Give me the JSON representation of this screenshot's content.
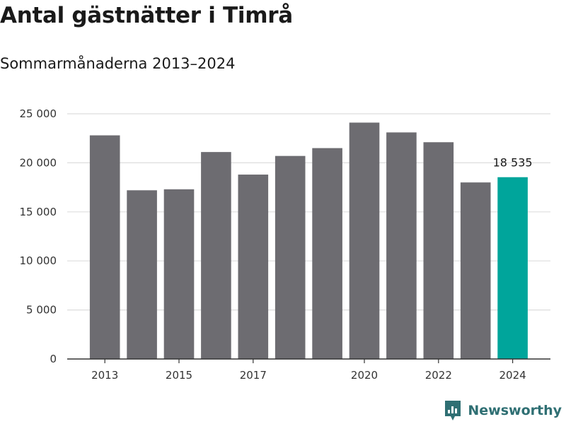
{
  "title": "Antal gästnätter i Timrå",
  "subtitle": "Sommarmånaderna 2013–2024",
  "brand": {
    "name": "Newsworthy",
    "icon": "newsworthy-logo-icon",
    "color": "#2f6f73"
  },
  "colors": {
    "bar": "#6d6c71",
    "highlight": "#00a59b",
    "grid": "#dddddd",
    "axis": "#333333"
  },
  "chart_data": {
    "type": "bar",
    "categories": [
      "2013",
      "2014",
      "2015",
      "2016",
      "2017",
      "2018",
      "2019",
      "2020",
      "2021",
      "2022",
      "2023",
      "2024"
    ],
    "values": [
      22800,
      17200,
      17300,
      21100,
      18800,
      20700,
      21500,
      24100,
      23100,
      22100,
      18000,
      18535
    ],
    "highlight_index": 11,
    "data_labels": [
      {
        "index": 11,
        "text": "18 535"
      }
    ],
    "x_tick_labels": [
      "2013",
      "2015",
      "2017",
      "2020",
      "2022",
      "2024"
    ],
    "y_ticks": [
      0,
      5000,
      10000,
      15000,
      20000,
      25000
    ],
    "y_tick_labels": [
      "0",
      "5 000",
      "10 000",
      "15 000",
      "20 000",
      "25 000"
    ],
    "ylim": [
      0,
      25000
    ],
    "grid": true,
    "legend": "none",
    "xlabel": "",
    "ylabel": ""
  }
}
